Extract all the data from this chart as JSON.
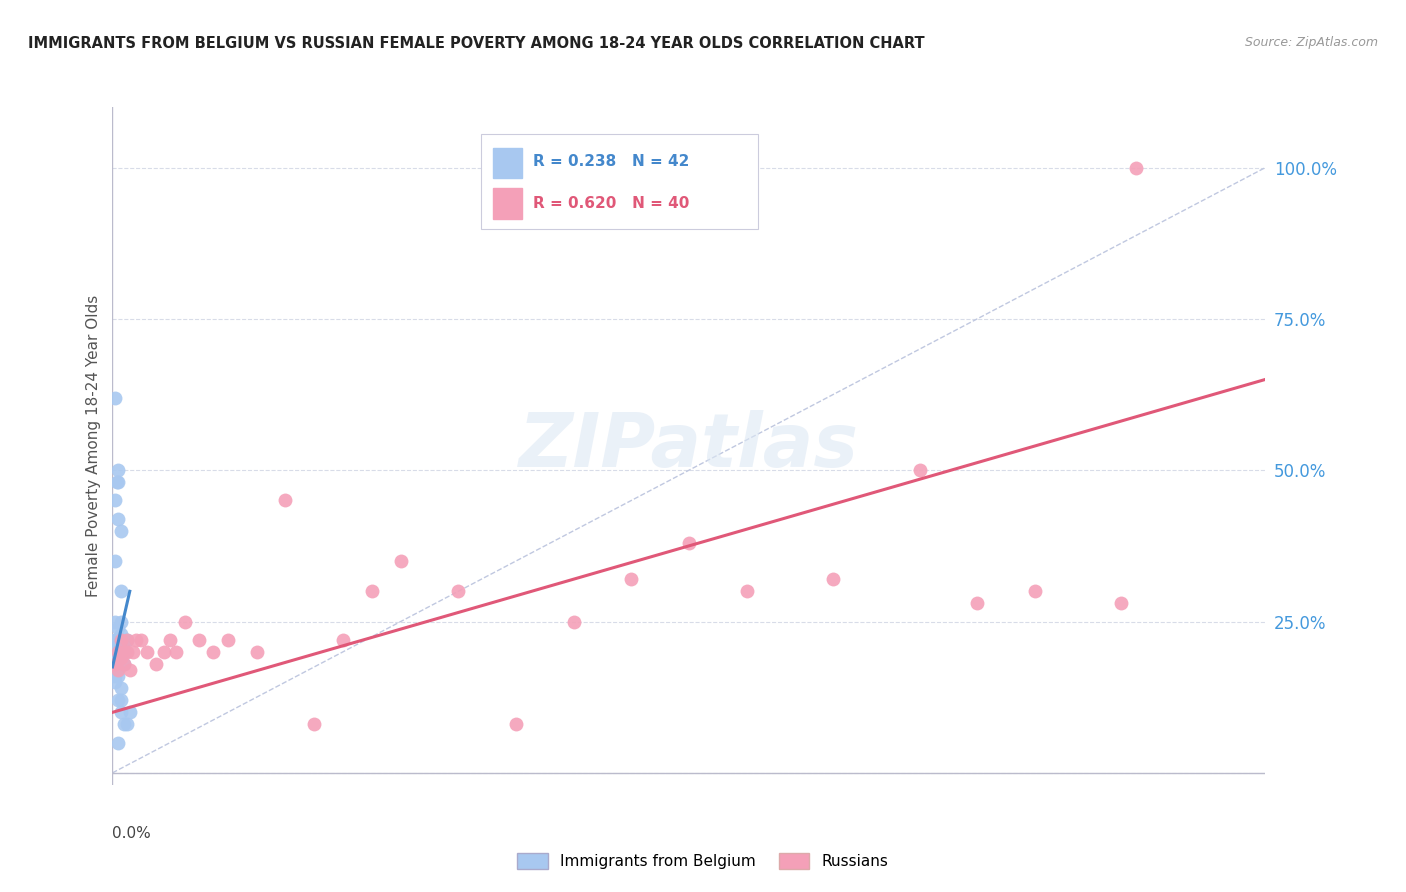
{
  "title": "IMMIGRANTS FROM BELGIUM VS RUSSIAN FEMALE POVERTY AMONG 18-24 YEAR OLDS CORRELATION CHART",
  "source": "Source: ZipAtlas.com",
  "ylabel": "Female Poverty Among 18-24 Year Olds",
  "xlim": [
    0.0,
    0.4
  ],
  "ylim": [
    -0.02,
    1.1
  ],
  "yticks": [
    0.0,
    0.25,
    0.5,
    0.75,
    1.0
  ],
  "ytick_labels": [
    "",
    "25.0%",
    "50.0%",
    "75.0%",
    "100.0%"
  ],
  "legend_blue_r": "R = 0.238",
  "legend_blue_n": "N = 42",
  "legend_pink_r": "R = 0.620",
  "legend_pink_n": "N = 40",
  "legend_label_blue": "Immigrants from Belgium",
  "legend_label_pink": "Russians",
  "blue_color": "#a8c8f0",
  "pink_color": "#f4a0b8",
  "blue_line_color": "#4488cc",
  "pink_line_color": "#e05878",
  "ref_line_color": "#c0c8e0",
  "background_color": "#ffffff",
  "grid_color": "#d8dce8",
  "blue_scatter_x": [
    0.001,
    0.001,
    0.002,
    0.002,
    0.001,
    0.0015,
    0.001,
    0.003,
    0.002,
    0.001,
    0.0005,
    0.001,
    0.001,
    0.002,
    0.002,
    0.003,
    0.001,
    0.002,
    0.0015,
    0.001,
    0.003,
    0.003,
    0.004,
    0.005,
    0.001,
    0.002,
    0.001,
    0.002,
    0.003,
    0.004,
    0.002,
    0.003,
    0.003,
    0.004,
    0.005,
    0.006,
    0.001,
    0.002,
    0.002,
    0.003,
    0.004,
    0.002
  ],
  "blue_scatter_y": [
    0.22,
    0.2,
    0.21,
    0.19,
    0.18,
    0.17,
    0.22,
    0.2,
    0.2,
    0.22,
    0.18,
    0.16,
    0.25,
    0.24,
    0.22,
    0.23,
    0.35,
    0.42,
    0.48,
    0.45,
    0.3,
    0.25,
    0.2,
    0.22,
    0.2,
    0.22,
    0.15,
    0.16,
    0.14,
    0.18,
    0.12,
    0.12,
    0.1,
    0.08,
    0.08,
    0.1,
    0.62,
    0.5,
    0.48,
    0.4,
    0.22,
    0.05
  ],
  "pink_scatter_x": [
    0.001,
    0.002,
    0.002,
    0.003,
    0.003,
    0.004,
    0.004,
    0.005,
    0.005,
    0.006,
    0.007,
    0.008,
    0.01,
    0.012,
    0.015,
    0.018,
    0.02,
    0.022,
    0.025,
    0.03,
    0.035,
    0.04,
    0.05,
    0.06,
    0.07,
    0.08,
    0.09,
    0.1,
    0.12,
    0.14,
    0.16,
    0.18,
    0.2,
    0.22,
    0.25,
    0.28,
    0.3,
    0.32,
    0.35,
    0.355
  ],
  "pink_scatter_y": [
    0.18,
    0.2,
    0.17,
    0.19,
    0.22,
    0.2,
    0.18,
    0.22,
    0.2,
    0.17,
    0.2,
    0.22,
    0.22,
    0.2,
    0.18,
    0.2,
    0.22,
    0.2,
    0.25,
    0.22,
    0.2,
    0.22,
    0.2,
    0.45,
    0.08,
    0.22,
    0.3,
    0.35,
    0.3,
    0.08,
    0.25,
    0.32,
    0.38,
    0.3,
    0.32,
    0.5,
    0.28,
    0.3,
    0.28,
    1.0
  ],
  "blue_trend_x": [
    0.0,
    0.006
  ],
  "blue_trend_y": [
    0.175,
    0.3
  ],
  "pink_trend_x": [
    0.0,
    0.4
  ],
  "pink_trend_y": [
    0.1,
    0.65
  ],
  "ref_line_x": [
    0.0,
    0.4
  ],
  "ref_line_y": [
    0.0,
    1.0
  ]
}
